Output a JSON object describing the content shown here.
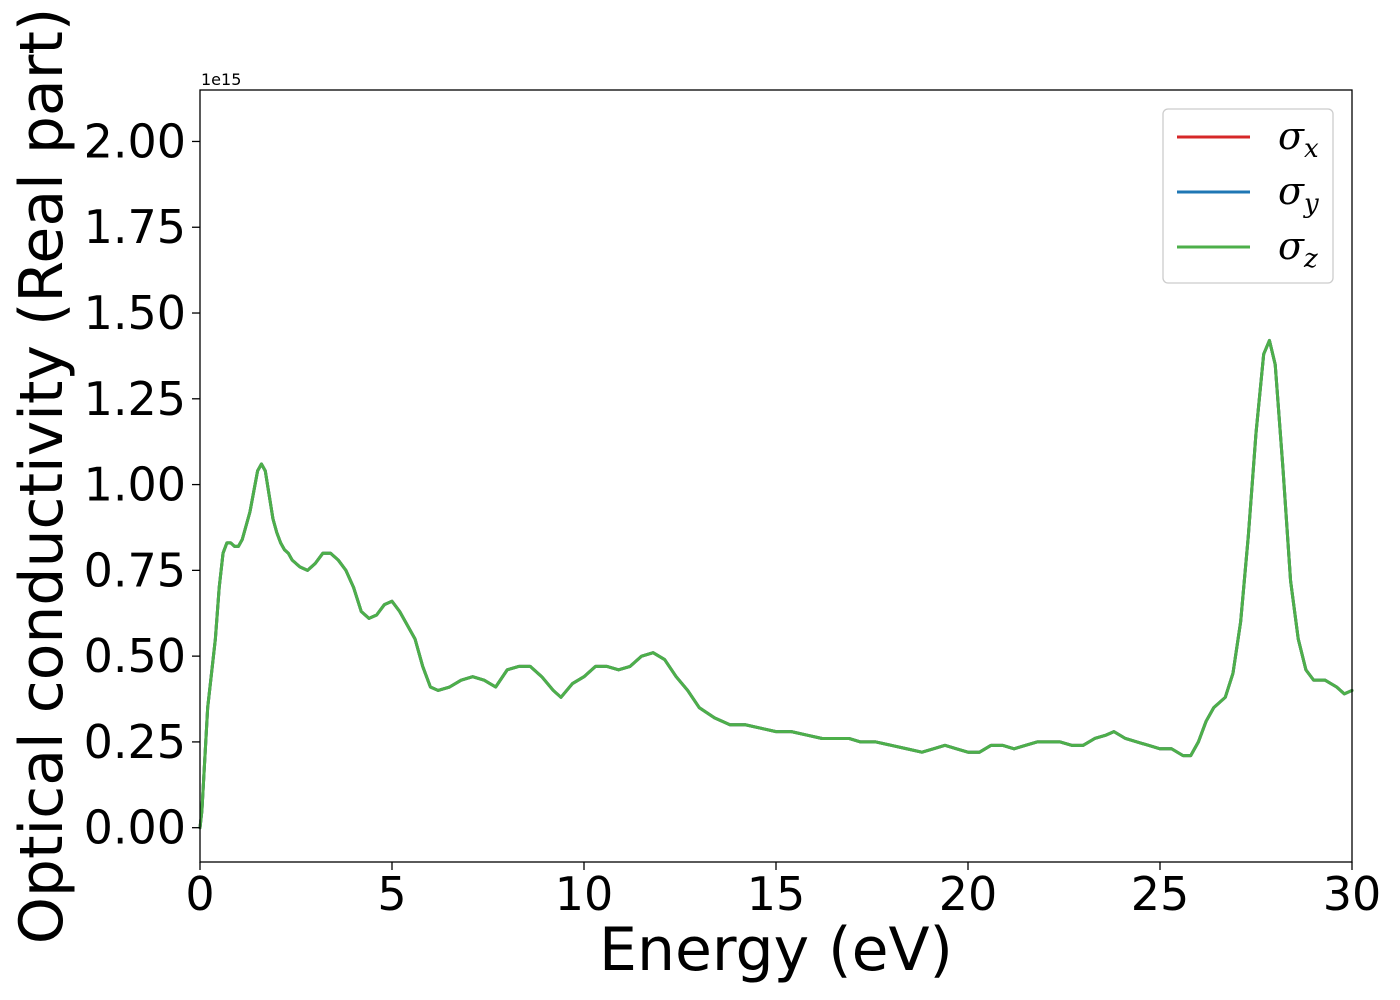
{
  "chart_data": {
    "type": "line",
    "title": "",
    "xlabel": "Energy (eV)",
    "ylabel": "Optical conductivity (Real part)",
    "y_offset_label": "1e15",
    "xlim": [
      0,
      30
    ],
    "ylim": [
      -0.1,
      2.15
    ],
    "x_ticks": [
      0,
      5,
      10,
      15,
      20,
      25,
      30
    ],
    "x_tick_labels": [
      "0",
      "5",
      "10",
      "15",
      "20",
      "25",
      "30"
    ],
    "y_ticks": [
      0,
      0.25,
      0.5,
      0.75,
      1.0,
      1.25,
      1.5,
      1.75,
      2.0
    ],
    "y_tick_labels": [
      "0.00",
      "0.25",
      "0.50",
      "0.75",
      "1.00",
      "1.25",
      "1.50",
      "1.75",
      "2.00"
    ],
    "grid": false,
    "legend_position": "top-right",
    "colors": {
      "sigma_x": "#d62728",
      "sigma_y": "#1f77b4",
      "sigma_z": "#4daf4a"
    },
    "series": [
      {
        "name": "σx",
        "legend_base": "σ",
        "legend_sub": "x",
        "color": "#d62728"
      },
      {
        "name": "σy",
        "legend_base": "σ",
        "legend_sub": "y",
        "color": "#1f77b4"
      },
      {
        "name": "σz",
        "legend_base": "σ",
        "legend_sub": "z",
        "color": "#4daf4a"
      }
    ],
    "x": [
      0,
      0.05,
      0.1,
      0.2,
      0.3,
      0.4,
      0.5,
      0.6,
      0.7,
      0.8,
      0.9,
      1.0,
      1.1,
      1.2,
      1.3,
      1.4,
      1.5,
      1.6,
      1.7,
      1.8,
      1.9,
      2.0,
      2.1,
      2.2,
      2.3,
      2.4,
      2.6,
      2.8,
      3.0,
      3.2,
      3.4,
      3.6,
      3.8,
      4.0,
      4.2,
      4.4,
      4.6,
      4.8,
      5.0,
      5.2,
      5.4,
      5.6,
      5.8,
      6.0,
      6.2,
      6.5,
      6.8,
      7.1,
      7.4,
      7.7,
      8.0,
      8.3,
      8.6,
      8.9,
      9.2,
      9.4,
      9.7,
      10.0,
      10.3,
      10.6,
      10.9,
      11.2,
      11.5,
      11.8,
      12.1,
      12.4,
      12.7,
      13.0,
      13.4,
      13.8,
      14.2,
      14.6,
      15.0,
      15.4,
      15.8,
      16.2,
      16.6,
      16.9,
      17.2,
      17.6,
      18.0,
      18.4,
      18.8,
      19.1,
      19.4,
      19.7,
      20.0,
      20.3,
      20.6,
      20.9,
      21.2,
      21.5,
      21.8,
      22.1,
      22.4,
      22.7,
      23.0,
      23.3,
      23.6,
      23.8,
      24.1,
      24.4,
      24.7,
      25.0,
      25.3,
      25.6,
      25.8,
      26.0,
      26.2,
      26.4,
      26.7,
      26.9,
      27.1,
      27.3,
      27.5,
      27.7,
      27.85,
      28.0,
      28.2,
      28.4,
      28.6,
      28.8,
      29.0,
      29.3,
      29.6,
      29.8,
      30.0
    ],
    "y": [
      0.0,
      0.05,
      0.15,
      0.35,
      0.45,
      0.55,
      0.7,
      0.8,
      0.83,
      0.83,
      0.82,
      0.82,
      0.84,
      0.88,
      0.92,
      0.98,
      1.04,
      1.06,
      1.04,
      0.97,
      0.9,
      0.86,
      0.83,
      0.81,
      0.8,
      0.78,
      0.76,
      0.75,
      0.77,
      0.8,
      0.8,
      0.78,
      0.75,
      0.7,
      0.63,
      0.61,
      0.62,
      0.65,
      0.66,
      0.63,
      0.59,
      0.55,
      0.47,
      0.41,
      0.4,
      0.41,
      0.43,
      0.44,
      0.43,
      0.41,
      0.46,
      0.47,
      0.47,
      0.44,
      0.4,
      0.38,
      0.42,
      0.44,
      0.47,
      0.47,
      0.46,
      0.47,
      0.5,
      0.51,
      0.49,
      0.44,
      0.4,
      0.35,
      0.32,
      0.3,
      0.3,
      0.29,
      0.28,
      0.28,
      0.27,
      0.26,
      0.26,
      0.26,
      0.25,
      0.25,
      0.24,
      0.23,
      0.22,
      0.23,
      0.24,
      0.23,
      0.22,
      0.22,
      0.24,
      0.24,
      0.23,
      0.24,
      0.25,
      0.25,
      0.25,
      0.24,
      0.24,
      0.26,
      0.27,
      0.28,
      0.26,
      0.25,
      0.24,
      0.23,
      0.23,
      0.21,
      0.21,
      0.25,
      0.31,
      0.35,
      0.38,
      0.45,
      0.6,
      0.85,
      1.15,
      1.38,
      1.42,
      1.35,
      1.05,
      0.72,
      0.55,
      0.46,
      0.43,
      0.43,
      0.41,
      0.39,
      0.4
    ]
  }
}
